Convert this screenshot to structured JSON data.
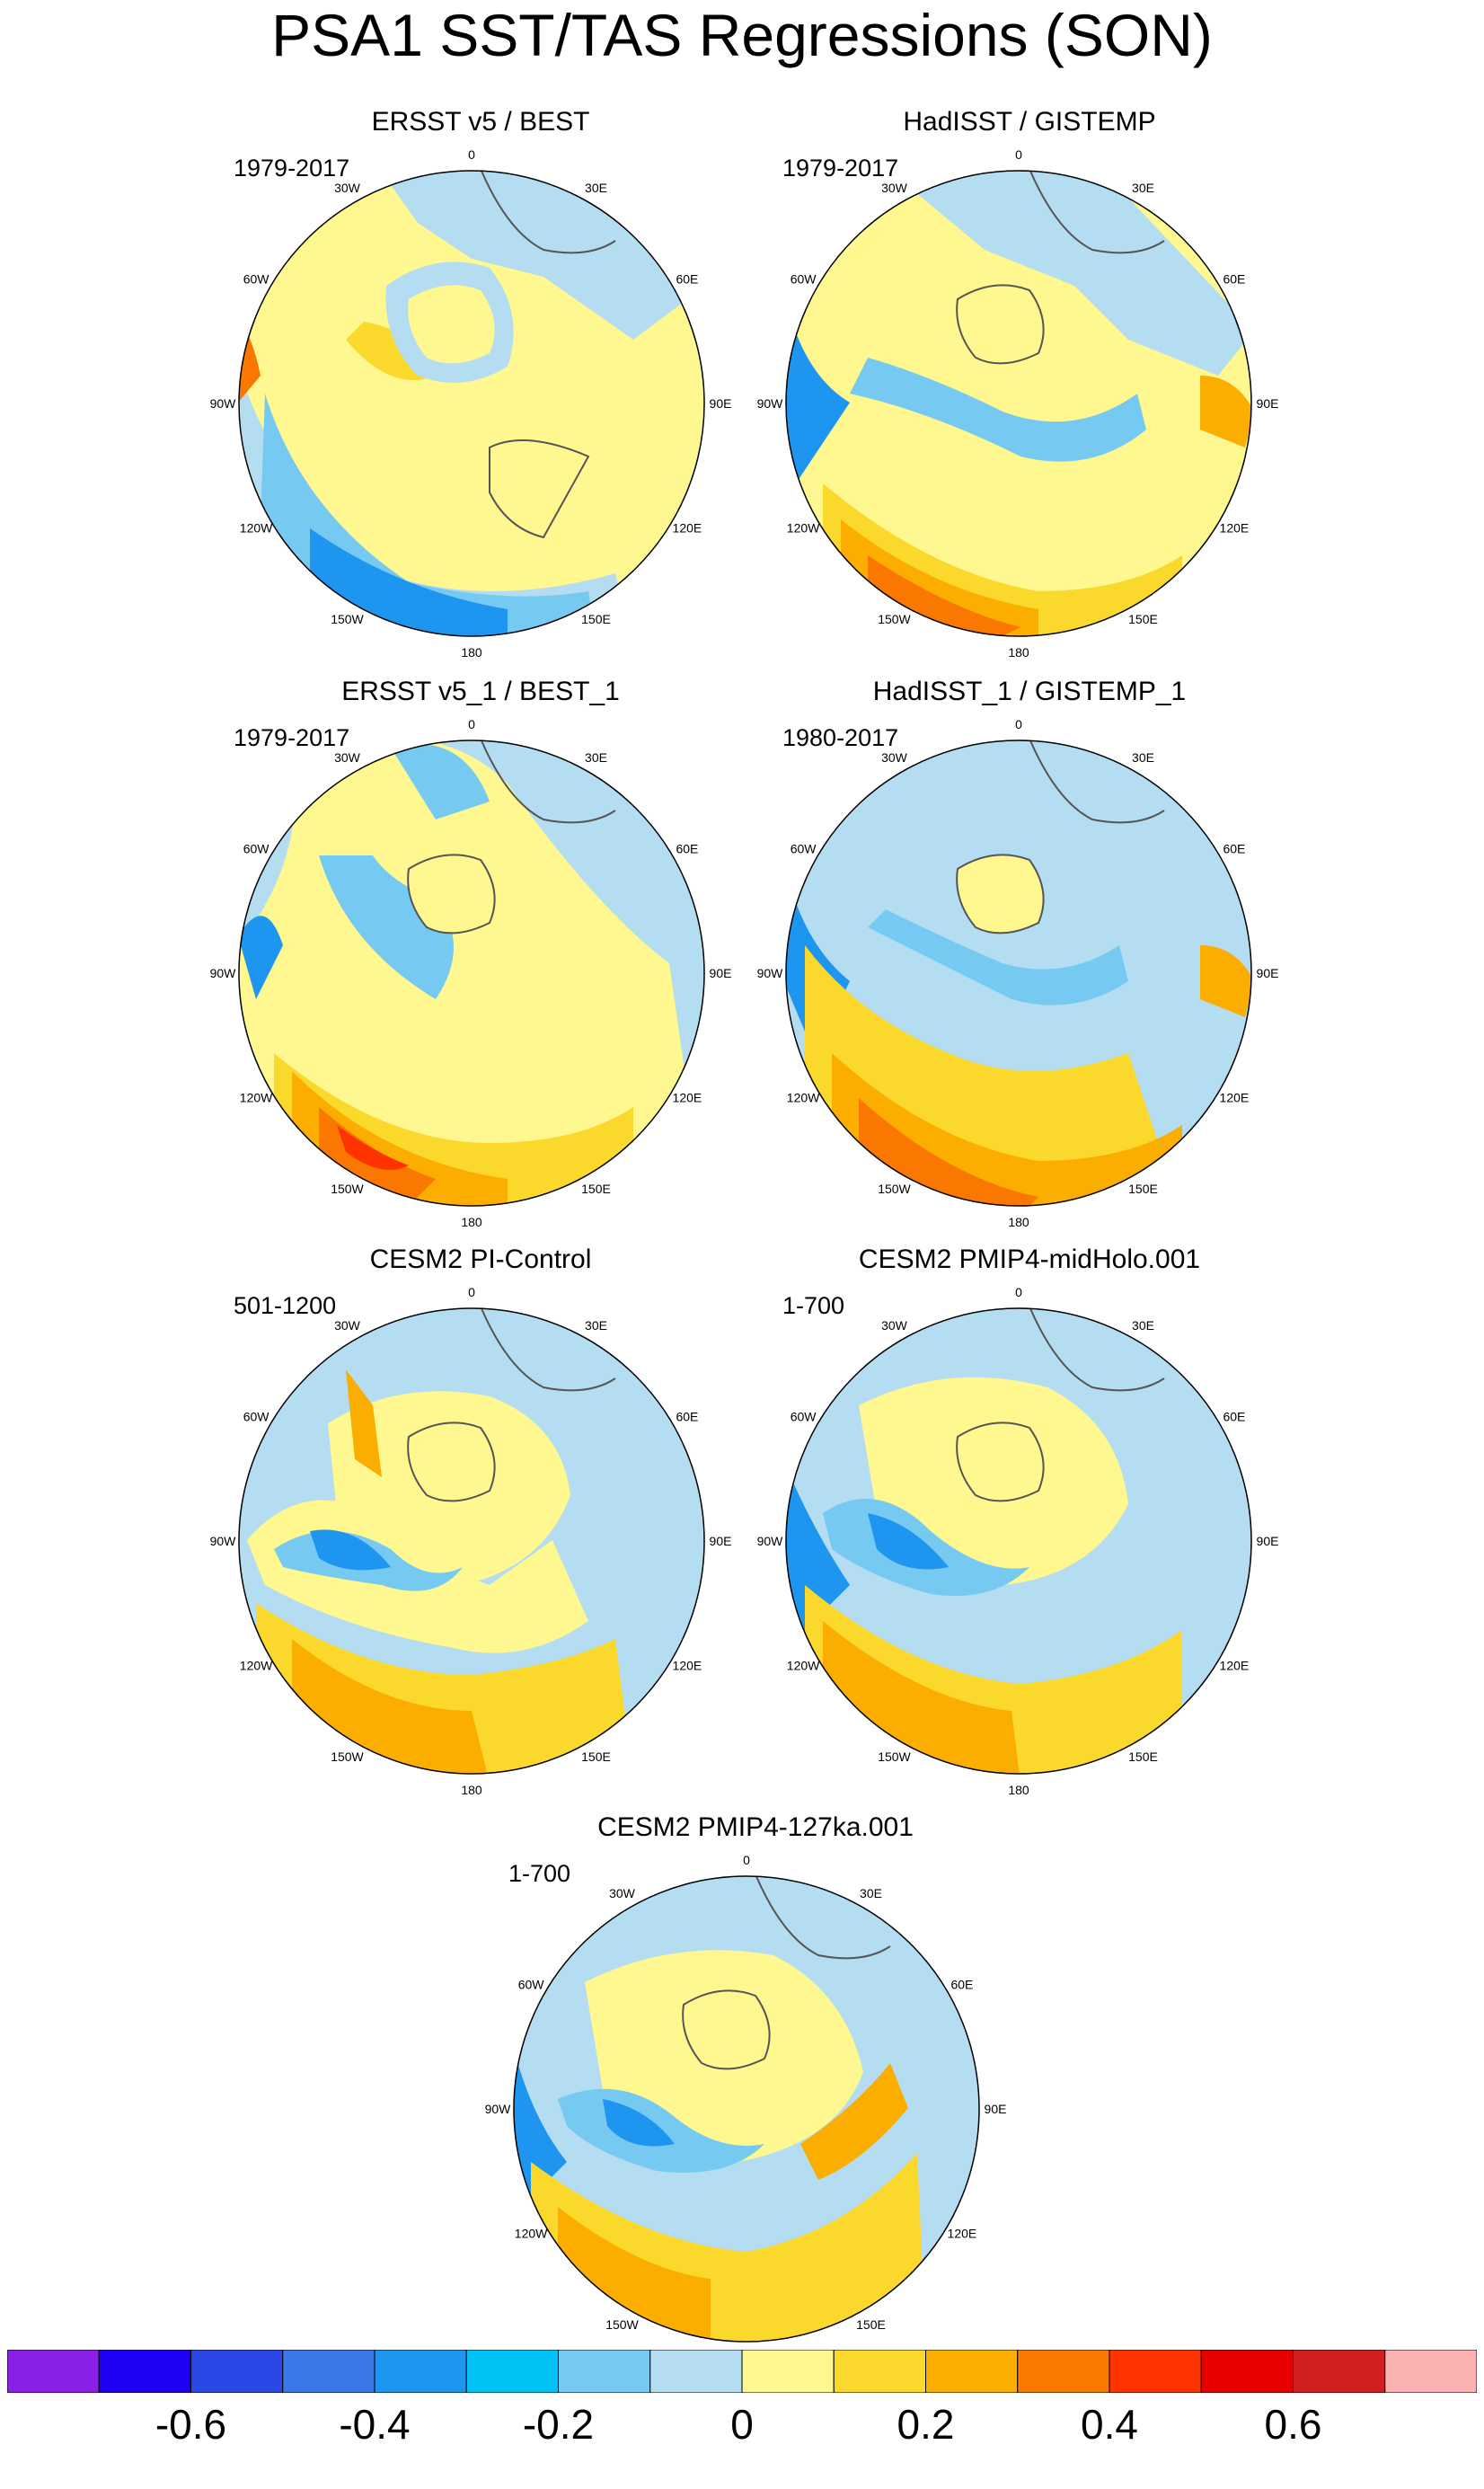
{
  "title": "PSA1 SST/TAS Regressions (SON)",
  "longitude_labels": [
    "0",
    "30E",
    "60E",
    "90E",
    "120E",
    "150E",
    "180",
    "150W",
    "120W",
    "90W",
    "60W",
    "30W"
  ],
  "panels": [
    {
      "title": "ERSST v5 / BEST",
      "period": "1979-2017"
    },
    {
      "title": "HadISST / GISTEMP",
      "period": "1979-2017"
    },
    {
      "title": "ERSST v5_1 / BEST_1",
      "period": "1979-2017"
    },
    {
      "title": "HadISST_1 / GISTEMP_1",
      "period": "1980-2017"
    },
    {
      "title": "CESM2 PI-Control",
      "period": "501-1200"
    },
    {
      "title": "CESM2 PMIP4-midHolo.001",
      "period": "1-700"
    },
    {
      "title": "CESM2 PMIP4-127ka.001",
      "period": "1-700"
    }
  ],
  "colorbar": {
    "colors": [
      "#8a1fe6",
      "#1e00f5",
      "#2b47e6",
      "#3a78e8",
      "#1e96f0",
      "#00c2f5",
      "#76c9f0",
      "#b4ddf2",
      "#fff890",
      "#fbd92c",
      "#fbad00",
      "#fb7800",
      "#ff3300",
      "#e80000",
      "#d21e1e",
      "#fcb2b2"
    ],
    "tick_labels": [
      "-0.6",
      "-0.4",
      "-0.2",
      "0",
      "0.2",
      "0.4",
      "0.6"
    ]
  }
}
